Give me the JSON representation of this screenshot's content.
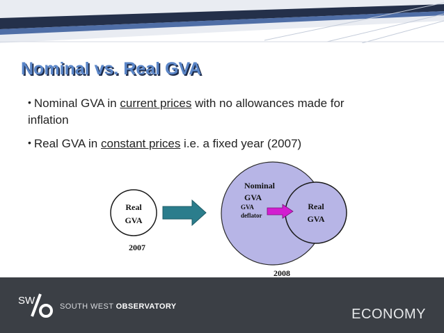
{
  "title": "Nominal vs. Real GVA",
  "bullets": [
    {
      "before": "Nominal GVA in ",
      "underlined": "current prices",
      "after": " with no allowances made for inflation"
    },
    {
      "before": "Real GVA in ",
      "underlined": "constant prices",
      "after": " i.e. a fixed year (2007)"
    }
  ],
  "diagram": {
    "left_circle": {
      "line1": "Real",
      "line2": "GVA",
      "year": "2007"
    },
    "big_circle": {
      "line1": "Nominal",
      "line2": "GVA",
      "year": "2008"
    },
    "deflator": {
      "line1": "GVA",
      "line2": "deflator"
    },
    "inner_circle": {
      "line1": "Real",
      "line2": "GVA"
    }
  },
  "footer": {
    "logo_mark": "SW",
    "logo_light": "SOUTH WEST ",
    "logo_bold": "OBSERVATORY",
    "section": "ECONOMY"
  },
  "colors": {
    "title": "#5b86c8",
    "circle_fill": "#b7b5e6",
    "arrow": "#2b7d8c",
    "deflator_arrow": "#d21ed0",
    "footer": "#3b3f45"
  }
}
